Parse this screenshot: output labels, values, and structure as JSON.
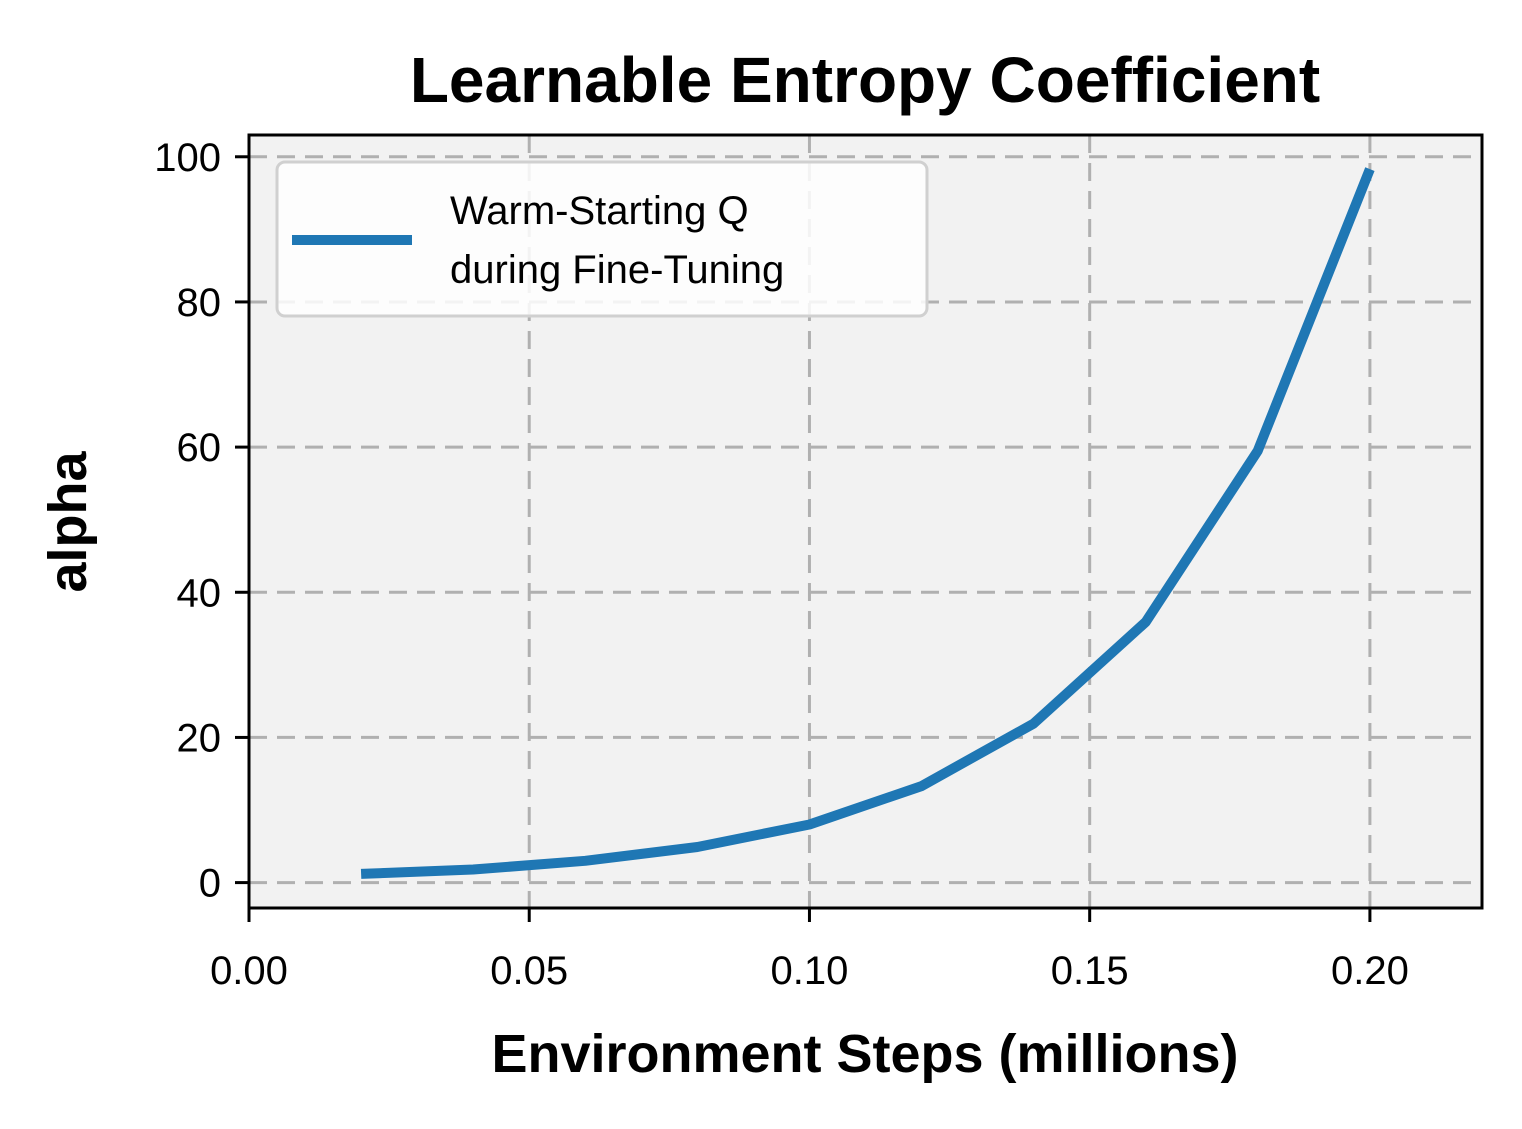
{
  "chart_data": {
    "type": "line",
    "title": "Learnable Entropy Coefficient",
    "xlabel": "Environment Steps (millions)",
    "ylabel": "alpha",
    "xlim": [
      0.0,
      0.22
    ],
    "ylim": [
      -3.5,
      103
    ],
    "xticks": [
      0.0,
      0.05,
      0.1,
      0.15,
      0.2
    ],
    "xtick_labels": [
      "0.00",
      "0.05",
      "0.10",
      "0.15",
      "0.20"
    ],
    "yticks": [
      0,
      20,
      40,
      60,
      80,
      100
    ],
    "ytick_labels": [
      "0",
      "20",
      "40",
      "60",
      "80",
      "100"
    ],
    "grid": true,
    "legend_position": "upper-left",
    "series": [
      {
        "name": "Warm-Starting Q\nduring Fine-Tuning",
        "legend_lines": [
          "Warm-Starting Q",
          "during Fine-Tuning"
        ],
        "color": "#1f77b4",
        "x": [
          0.02,
          0.04,
          0.06,
          0.08,
          0.1,
          0.12,
          0.14,
          0.16,
          0.18,
          0.2
        ],
        "y": [
          1.2,
          1.8,
          3.0,
          4.9,
          8.0,
          13.3,
          21.9,
          35.9,
          59.5,
          98.3
        ]
      }
    ],
    "colors": {
      "plot_background": "#f2f2f2",
      "grid": "#b0b0b0",
      "axes": "#000000"
    }
  }
}
